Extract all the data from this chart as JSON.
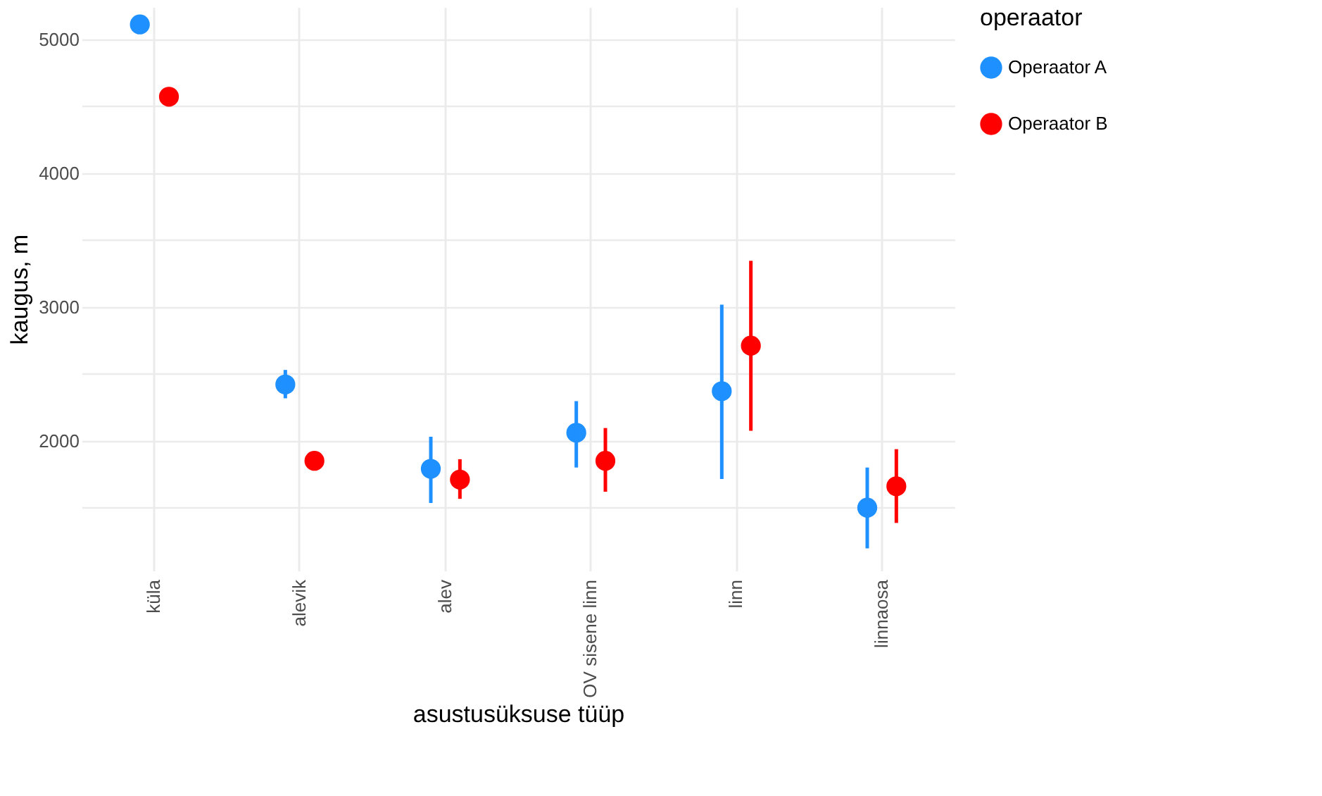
{
  "chart_data": {
    "type": "scatter",
    "xlabel": "asustusüksuse tüüp",
    "ylabel": "kaugus, m",
    "legend_title": "operaator",
    "categories": [
      "küla",
      "alevik",
      "alev",
      "OV sisene linn",
      "linn",
      "linnaosa"
    ],
    "series": [
      {
        "name": "Operaator A",
        "color": "#1e90ff",
        "values": [
          5110,
          2420,
          1790,
          2060,
          2370,
          1500
        ],
        "errors": [
          null,
          [
            2317,
            2529
          ],
          [
            1535,
            2030
          ],
          [
            1800,
            2296
          ],
          [
            1714,
            3016
          ],
          [
            1196,
            1800
          ]
        ]
      },
      {
        "name": "Operaator B",
        "color": "#ff0000",
        "values": [
          4570,
          1850,
          1710,
          1850,
          2710,
          1660
        ],
        "errors": [
          null,
          null,
          [
            1566,
            1862
          ],
          [
            1619,
            2095
          ],
          [
            2074,
            3344
          ],
          [
            1386,
            1937
          ]
        ]
      }
    ],
    "ylim": [
      1030,
      5240
    ],
    "yticks": [
      {
        "value": 1500,
        "label": null
      },
      2000,
      {
        "value": 2500,
        "label": null
      },
      3000,
      {
        "value": 3500,
        "label": null
      },
      4000,
      {
        "value": 4500,
        "label": null
      },
      5000
    ],
    "grid": true,
    "legend": "right",
    "marker": "circle"
  }
}
